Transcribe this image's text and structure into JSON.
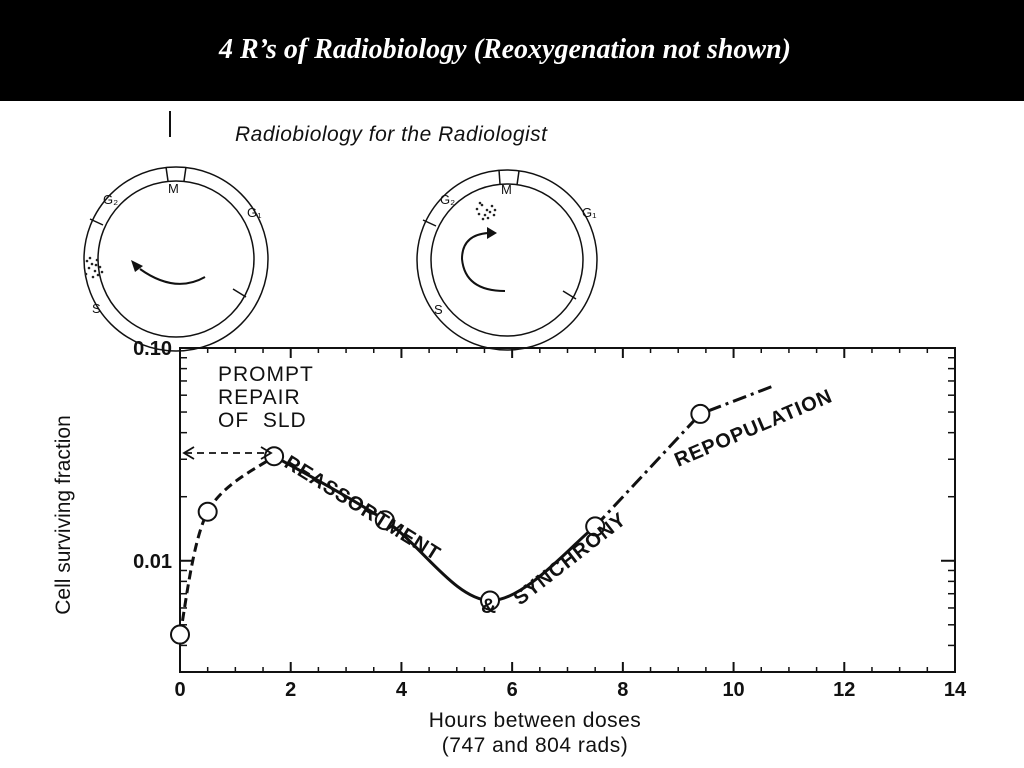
{
  "slide_title": "4 R’s of Radiobiology (Reoxygenation not shown)",
  "book_header": "Radiobiology for the Radiologist",
  "cycle_labels": {
    "g2": "G₂",
    "m": "M",
    "g1": "G₁",
    "s": "S"
  },
  "colors": {
    "banner": "#000000",
    "ink": "#111111"
  },
  "chart_data": {
    "type": "line",
    "title": "",
    "xlabel": "Hours between doses",
    "xlabel_sub": "(747 and 804 rads)",
    "ylabel": "Cell surviving fraction",
    "xlim": [
      0,
      14
    ],
    "ylim": [
      0.003,
      0.1
    ],
    "yscale": "log",
    "xticks": [
      0,
      2,
      4,
      6,
      8,
      10,
      12,
      14
    ],
    "yticks": [
      {
        "value": 0.01,
        "label": "0.01"
      },
      {
        "value": 0.1,
        "label": "0.10"
      }
    ],
    "grid": false,
    "points": [
      {
        "x": 0,
        "y": 0.0045
      },
      {
        "x": 0.5,
        "y": 0.017
      },
      {
        "x": 1.7,
        "y": 0.031
      },
      {
        "x": 3.7,
        "y": 0.0155
      },
      {
        "x": 5.6,
        "y": 0.0065
      },
      {
        "x": 7.5,
        "y": 0.0145
      },
      {
        "x": 9.4,
        "y": 0.049
      }
    ],
    "trend_extension": [
      {
        "x": 10.7,
        "y": 0.066
      }
    ],
    "annotations": {
      "prompt_repair": [
        "PROMPT",
        "REPAIR",
        "OF  SLD"
      ],
      "reassortment": "REASSORTMENT",
      "ampersand": "&",
      "synchrony": "SYNCHRONY",
      "repopulation": "REPOPULATION"
    }
  }
}
